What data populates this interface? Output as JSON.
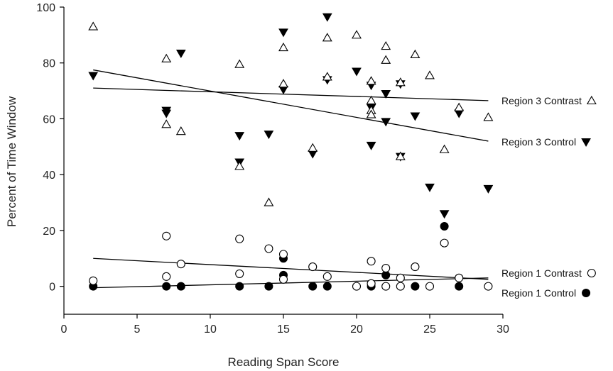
{
  "chart_data": {
    "type": "scatter",
    "title": "",
    "xlabel": "Reading Span Score",
    "ylabel": "Percent of Time Window",
    "xlim": [
      0,
      30
    ],
    "ylim": [
      -10,
      100
    ],
    "x_ticks": [
      0,
      5,
      10,
      15,
      20,
      25,
      30
    ],
    "y_ticks": [
      0,
      20,
      40,
      60,
      80,
      100
    ],
    "grid": false,
    "legend_placement": "right",
    "series": [
      {
        "name": "Region 3 Contrast",
        "marker": "triangle-open",
        "color": "#000000",
        "points": [
          [
            2,
            93
          ],
          [
            7,
            81.5
          ],
          [
            7,
            58
          ],
          [
            8,
            55.5
          ],
          [
            12,
            79.5
          ],
          [
            12,
            43
          ],
          [
            14,
            30
          ],
          [
            15,
            85.5
          ],
          [
            15,
            72.5
          ],
          [
            17,
            49.5
          ],
          [
            18,
            89
          ],
          [
            18,
            75
          ],
          [
            20,
            90
          ],
          [
            21,
            73.5
          ],
          [
            21,
            66.5
          ],
          [
            21,
            63
          ],
          [
            21,
            61.5
          ],
          [
            22,
            86
          ],
          [
            22,
            81
          ],
          [
            23,
            73
          ],
          [
            23,
            46.5
          ],
          [
            24,
            83
          ],
          [
            25,
            75.5
          ],
          [
            26,
            49
          ],
          [
            27,
            64
          ],
          [
            29,
            60.5
          ]
        ],
        "trend": {
          "x": [
            2,
            29
          ],
          "y": [
            71,
            66.5
          ]
        }
      },
      {
        "name": "Region 3 Control",
        "marker": "triangle-down-filled",
        "color": "#000000",
        "points": [
          [
            2,
            75.5
          ],
          [
            7,
            63
          ],
          [
            7,
            62
          ],
          [
            8,
            83.5
          ],
          [
            12,
            54
          ],
          [
            12,
            44.5
          ],
          [
            14,
            54.5
          ],
          [
            15,
            91
          ],
          [
            15,
            70.5
          ],
          [
            17,
            47.5
          ],
          [
            18,
            96.5
          ],
          [
            18,
            74
          ],
          [
            20,
            77
          ],
          [
            21,
            72
          ],
          [
            21,
            50.5
          ],
          [
            21,
            64
          ],
          [
            22,
            69
          ],
          [
            22,
            59
          ],
          [
            23,
            72.5
          ],
          [
            23,
            46.5
          ],
          [
            24,
            61
          ],
          [
            25,
            35.5
          ],
          [
            26,
            26
          ],
          [
            27,
            62
          ],
          [
            29,
            35
          ]
        ],
        "trend": {
          "x": [
            2,
            29
          ],
          "y": [
            77.5,
            52
          ]
        }
      },
      {
        "name": "Region 1 Contrast",
        "marker": "circle-open",
        "color": "#000000",
        "points": [
          [
            2,
            2
          ],
          [
            7,
            18
          ],
          [
            7,
            3.5
          ],
          [
            8,
            8
          ],
          [
            12,
            17
          ],
          [
            12,
            4.5
          ],
          [
            14,
            13.5
          ],
          [
            15,
            11.5
          ],
          [
            15,
            2.5
          ],
          [
            17,
            7
          ],
          [
            18,
            3.5
          ],
          [
            20,
            0
          ],
          [
            21,
            9
          ],
          [
            21,
            1
          ],
          [
            22,
            6.5
          ],
          [
            22,
            0
          ],
          [
            23,
            3
          ],
          [
            23,
            0
          ],
          [
            24,
            7
          ],
          [
            25,
            0
          ],
          [
            26,
            15.5
          ],
          [
            27,
            3
          ],
          [
            29,
            0
          ]
        ],
        "trend": {
          "x": [
            2,
            29
          ],
          "y": [
            10,
            2.5
          ]
        }
      },
      {
        "name": "Region 1 Control",
        "marker": "circle-filled",
        "color": "#000000",
        "points": [
          [
            2,
            0
          ],
          [
            7,
            0
          ],
          [
            8,
            0
          ],
          [
            12,
            0
          ],
          [
            14,
            0
          ],
          [
            15,
            10
          ],
          [
            15,
            4
          ],
          [
            17,
            0
          ],
          [
            18,
            0
          ],
          [
            21,
            0
          ],
          [
            22,
            4
          ],
          [
            24,
            0
          ],
          [
            26,
            21.5
          ],
          [
            27,
            0
          ]
        ],
        "trend": {
          "x": [
            2,
            29
          ],
          "y": [
            -0.5,
            3
          ]
        }
      }
    ]
  }
}
